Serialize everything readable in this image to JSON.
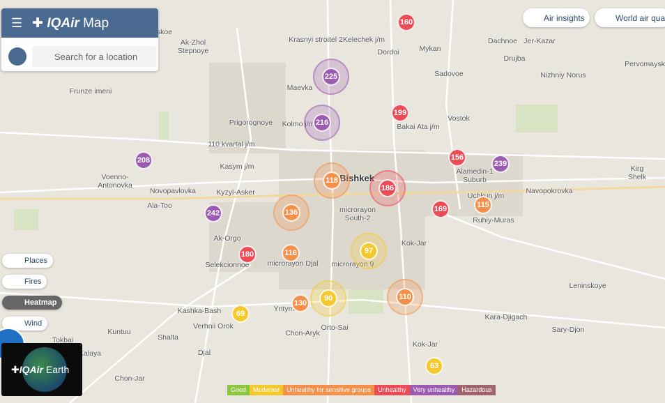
{
  "header": {
    "brand": "IQAir",
    "product": "Map",
    "search_placeholder": "Search for a location"
  },
  "top_buttons": [
    "Air insights",
    "World air quality"
  ],
  "layers": [
    "Places",
    "Fires",
    "Heatmap",
    "Wind"
  ],
  "places": [
    "skoe",
    "Krasnyi stroitel 2",
    "Kelechek j/m",
    "Dordoi",
    "Mykan",
    "Dachnoe",
    "Jer-Kazar",
    "Ak-Zhol Stepnoye",
    "Maevka",
    "Sadovoe",
    "Drujba",
    "Nizhniy Norus",
    "Pervomaysk",
    "Frunze imeni",
    "Prigorognoye",
    "Kolmo j/m",
    "Bakai Ata j/m",
    "Vostok",
    "110 kvartal j/m",
    "Kasym j/m",
    "Voenno-Antonovka",
    "Novopavlovka",
    "Kyzyl-Asker",
    "Ala-Too",
    "Bishkek",
    "Alamedin-1 Suburb",
    "Kirg Shelk",
    "Navopokrovka",
    "Uchkun j/m",
    "microrayon South-2",
    "Ruhiy-Muras",
    "Ak-Orgo",
    "Kok-Jar",
    "Selekcionnoe",
    "microrayon Djal",
    "microrayon 9",
    "Leninskoye",
    "Kashka-Bash",
    "Yntymak",
    "Verhnii Orok",
    "Orto-Sai",
    "Kara-Djigach",
    "Kuntuu",
    "Chon-Aryk",
    "Sary-Djon",
    "Shalta",
    "Tokbai",
    "Kok-Jar",
    "Kalaya",
    "Djal",
    "Chon-Jar"
  ],
  "stations": [
    160,
    225,
    199,
    216,
    208,
    156,
    239,
    118,
    186,
    169,
    115,
    242,
    136,
    180,
    116,
    97,
    90,
    110,
    130,
    69,
    63
  ],
  "legend": [
    "Good",
    "Moderate",
    "Unhealthy for sensitive groups",
    "Unhealthy",
    "Very unhealthy",
    "Hazardous"
  ],
  "earth": {
    "brand": "IQAir",
    "product": "Earth"
  }
}
